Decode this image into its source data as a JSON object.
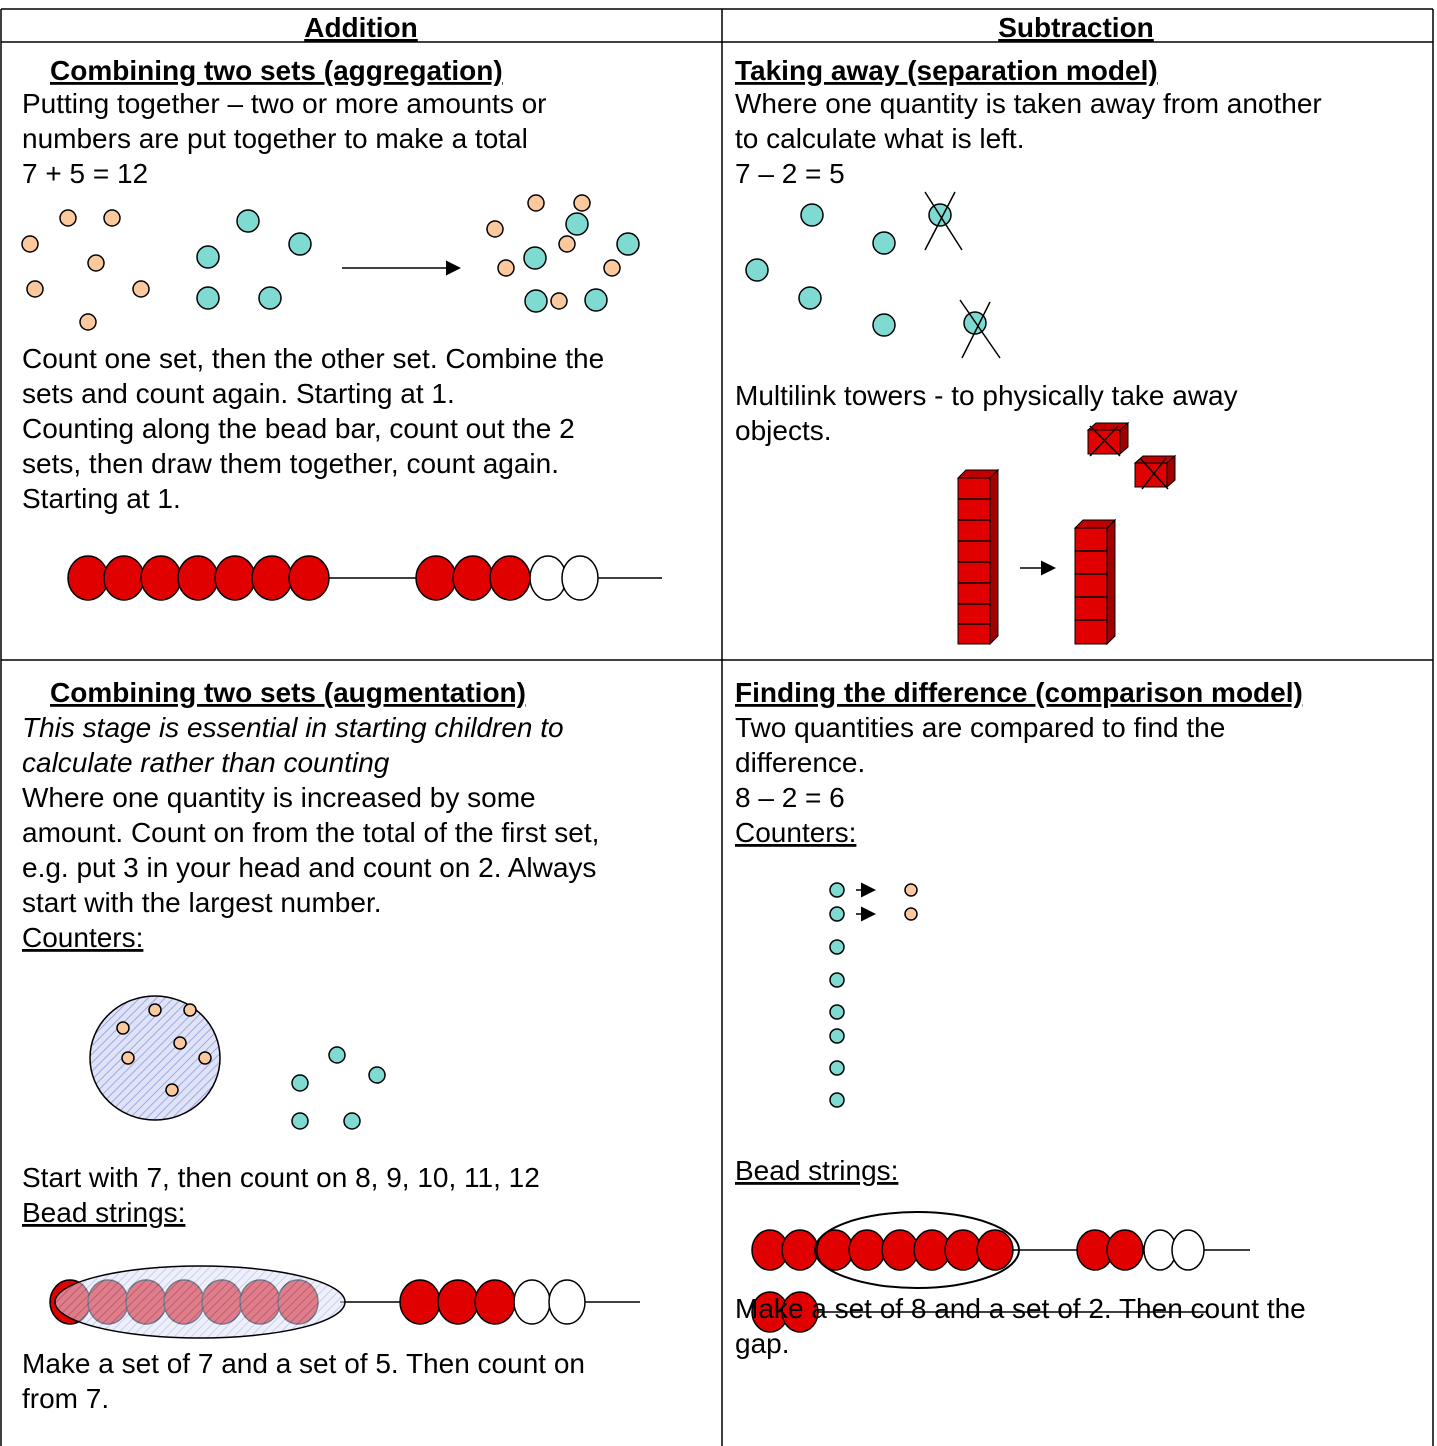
{
  "header": {
    "addition": "Addition",
    "subtraction": "Subtraction"
  },
  "aggregation": {
    "heading": "Combining two sets (aggregation)",
    "description": [
      "Putting together – two or more amounts or",
      "numbers are put together to make a total"
    ],
    "equation": "7 + 5 = 12",
    "notes": [
      "Count one set, then the other set. Combine the",
      "sets and count again. Starting at 1.",
      "Counting along the bead bar, count out the 2",
      "sets, then draw them together, count again.",
      "Starting at 1."
    ]
  },
  "separation": {
    "heading": "Taking away (separation model)",
    "description": [
      "Where one quantity is taken away from another",
      "to calculate what is left."
    ],
    "equation": "7 – 2 = 5",
    "notes": [
      "Multilink towers - to physically take away",
      "objects."
    ]
  },
  "augmentation": {
    "heading": "Combining two sets (augmentation)",
    "emphasis": [
      "This stage is essential in starting children to",
      "calculate rather than counting"
    ],
    "description": [
      "Where one quantity is increased by some",
      "amount. Count on from the total of the first set,",
      "e.g. put 3 in your head and count on 2. Always",
      "start with the largest number."
    ],
    "counters_label": "Counters:",
    "count_on": "Start with 7, then count on 8, 9, 10, 11, 12",
    "bead_label": "Bead strings:",
    "notes": [
      "Make a set of 7 and a set of 5. Then count on",
      "from 7."
    ]
  },
  "comparison": {
    "heading": "Finding the difference (comparison model)",
    "description": [
      "Two quantities are compared to find the",
      "difference."
    ],
    "equation": "8 – 2 = 6",
    "counters_label": "Counters:",
    "bead_label": "Bead strings:",
    "notes": [
      "Make a set of 8 and a set of 2. Then count the",
      "gap."
    ]
  }
}
